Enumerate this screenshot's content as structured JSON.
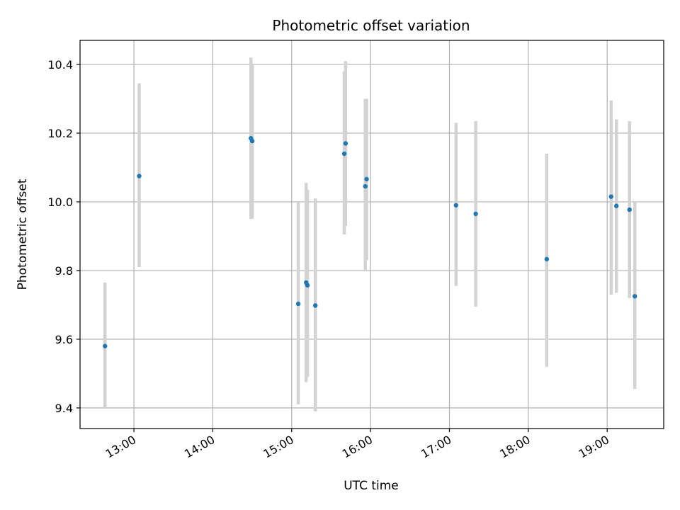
{
  "chart_data": {
    "type": "scatter",
    "title": "Photometric offset variation",
    "xlabel": "UTC time",
    "ylabel": "Photometric offset",
    "x_ticks": [
      "13:00",
      "14:00",
      "15:00",
      "16:00",
      "17:00",
      "18:00",
      "19:00"
    ],
    "y_ticks": [
      "9.4",
      "9.6",
      "9.8",
      "10.0",
      "10.2",
      "10.4"
    ],
    "xlim": [
      "12:19",
      "19:43"
    ],
    "ylim": [
      9.34,
      10.47
    ],
    "grid": true,
    "point_color": "#1f77b4",
    "errorbar_color": "#d3d3d3",
    "points": [
      {
        "x": "12:38",
        "y": 9.58,
        "low": 9.4,
        "high": 9.765
      },
      {
        "x": "13:04",
        "y": 10.075,
        "low": 9.81,
        "high": 10.345
      },
      {
        "x": "14:29",
        "y": 10.185,
        "low": 9.95,
        "high": 10.42
      },
      {
        "x": "14:30",
        "y": 10.177,
        "low": 9.95,
        "high": 10.4
      },
      {
        "x": "15:05",
        "y": 9.703,
        "low": 9.41,
        "high": 10.0
      },
      {
        "x": "15:11",
        "y": 9.765,
        "low": 9.475,
        "high": 10.055
      },
      {
        "x": "15:12",
        "y": 9.757,
        "low": 9.49,
        "high": 10.035
      },
      {
        "x": "15:18",
        "y": 9.698,
        "low": 9.39,
        "high": 10.01
      },
      {
        "x": "15:40",
        "y": 10.14,
        "low": 9.905,
        "high": 10.38
      },
      {
        "x": "15:41",
        "y": 10.17,
        "low": 9.93,
        "high": 10.41
      },
      {
        "x": "15:56",
        "y": 10.045,
        "low": 9.8,
        "high": 10.3
      },
      {
        "x": "15:57",
        "y": 10.066,
        "low": 9.83,
        "high": 10.3
      },
      {
        "x": "17:05",
        "y": 9.99,
        "low": 9.755,
        "high": 10.23
      },
      {
        "x": "17:20",
        "y": 9.965,
        "low": 9.695,
        "high": 10.235
      },
      {
        "x": "18:14",
        "y": 9.833,
        "low": 9.52,
        "high": 10.14
      },
      {
        "x": "19:03",
        "y": 10.015,
        "low": 9.73,
        "high": 10.295
      },
      {
        "x": "19:07",
        "y": 9.988,
        "low": 9.735,
        "high": 10.24
      },
      {
        "x": "19:17",
        "y": 9.977,
        "low": 9.72,
        "high": 10.235
      },
      {
        "x": "19:21",
        "y": 9.725,
        "low": 9.455,
        "high": 10.0
      }
    ]
  }
}
